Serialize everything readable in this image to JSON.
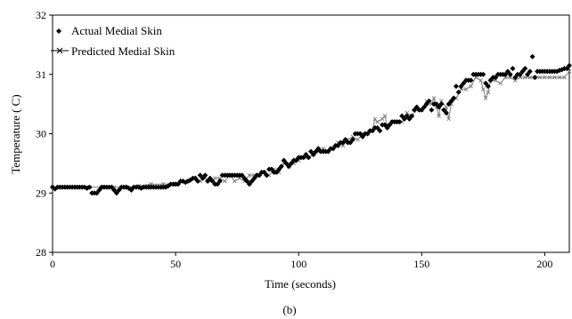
{
  "chart_data": {
    "type": "scatter",
    "caption": "(b)",
    "xlabel": "Time (seconds)",
    "ylabel": "Temperature ( C)",
    "xlim": [
      0,
      210
    ],
    "ylim": [
      28,
      32
    ],
    "x_ticks": [
      0,
      50,
      100,
      150,
      200
    ],
    "y_ticks": [
      28,
      29,
      30,
      31,
      32
    ],
    "grid": false,
    "legend_position": "top-left",
    "series": [
      {
        "name": "Actual Medial Skin",
        "marker": "diamond",
        "color": "#000000",
        "points": [
          [
            0,
            29.1
          ],
          [
            1,
            29.07
          ],
          [
            2,
            29.1
          ],
          [
            3,
            29.1
          ],
          [
            4,
            29.1
          ],
          [
            5,
            29.1
          ],
          [
            6,
            29.1
          ],
          [
            7,
            29.1
          ],
          [
            8,
            29.1
          ],
          [
            9,
            29.1
          ],
          [
            10,
            29.1
          ],
          [
            11,
            29.1
          ],
          [
            12,
            29.1
          ],
          [
            13,
            29.1
          ],
          [
            14,
            29.08
          ],
          [
            15,
            29.1
          ],
          [
            16,
            29.0
          ],
          [
            17,
            29.0
          ],
          [
            18,
            29.0
          ],
          [
            19,
            29.05
          ],
          [
            20,
            29.1
          ],
          [
            21,
            29.1
          ],
          [
            22,
            29.1
          ],
          [
            23,
            29.1
          ],
          [
            24,
            29.1
          ],
          [
            25,
            29.05
          ],
          [
            26,
            29.0
          ],
          [
            27,
            29.05
          ],
          [
            28,
            29.1
          ],
          [
            29,
            29.1
          ],
          [
            30,
            29.1
          ],
          [
            31,
            29.08
          ],
          [
            32,
            29.05
          ],
          [
            33,
            29.1
          ],
          [
            34,
            29.1
          ],
          [
            35,
            29.1
          ],
          [
            36,
            29.08
          ],
          [
            37,
            29.1
          ],
          [
            38,
            29.1
          ],
          [
            39,
            29.1
          ],
          [
            40,
            29.1
          ],
          [
            41,
            29.1
          ],
          [
            42,
            29.1
          ],
          [
            43,
            29.1
          ],
          [
            44,
            29.1
          ],
          [
            45,
            29.1
          ],
          [
            46,
            29.1
          ],
          [
            47,
            29.12
          ],
          [
            48,
            29.15
          ],
          [
            49,
            29.15
          ],
          [
            50,
            29.15
          ],
          [
            51,
            29.15
          ],
          [
            52,
            29.2
          ],
          [
            53,
            29.2
          ],
          [
            54,
            29.18
          ],
          [
            55,
            29.2
          ],
          [
            56,
            29.22
          ],
          [
            57,
            29.25
          ],
          [
            58,
            29.25
          ],
          [
            59,
            29.2
          ],
          [
            60,
            29.3
          ],
          [
            61,
            29.25
          ],
          [
            62,
            29.3
          ],
          [
            63,
            29.2
          ],
          [
            64,
            29.25
          ],
          [
            65,
            29.2
          ],
          [
            66,
            29.15
          ],
          [
            67,
            29.15
          ],
          [
            68,
            29.2
          ],
          [
            69,
            29.3
          ],
          [
            70,
            29.3
          ],
          [
            71,
            29.3
          ],
          [
            72,
            29.3
          ],
          [
            73,
            29.3
          ],
          [
            74,
            29.3
          ],
          [
            75,
            29.3
          ],
          [
            76,
            29.3
          ],
          [
            77,
            29.3
          ],
          [
            78,
            29.25
          ],
          [
            79,
            29.2
          ],
          [
            80,
            29.15
          ],
          [
            81,
            29.2
          ],
          [
            82,
            29.25
          ],
          [
            83,
            29.3
          ],
          [
            84,
            29.3
          ],
          [
            85,
            29.35
          ],
          [
            86,
            29.35
          ],
          [
            87,
            29.3
          ],
          [
            88,
            29.4
          ],
          [
            89,
            29.4
          ],
          [
            90,
            29.35
          ],
          [
            91,
            29.35
          ],
          [
            92,
            29.4
          ],
          [
            93,
            29.45
          ],
          [
            94,
            29.55
          ],
          [
            95,
            29.5
          ],
          [
            96,
            29.45
          ],
          [
            97,
            29.5
          ],
          [
            98,
            29.55
          ],
          [
            99,
            29.55
          ],
          [
            100,
            29.6
          ],
          [
            101,
            29.6
          ],
          [
            102,
            29.6
          ],
          [
            103,
            29.65
          ],
          [
            104,
            29.6
          ],
          [
            105,
            29.7
          ],
          [
            106,
            29.65
          ],
          [
            107,
            29.7
          ],
          [
            108,
            29.75
          ],
          [
            109,
            29.7
          ],
          [
            110,
            29.7
          ],
          [
            111,
            29.7
          ],
          [
            112,
            29.7
          ],
          [
            113,
            29.75
          ],
          [
            114,
            29.75
          ],
          [
            115,
            29.8
          ],
          [
            116,
            29.8
          ],
          [
            117,
            29.85
          ],
          [
            118,
            29.85
          ],
          [
            119,
            29.9
          ],
          [
            120,
            29.85
          ],
          [
            121,
            29.85
          ],
          [
            122,
            29.9
          ],
          [
            123,
            30.0
          ],
          [
            124,
            30.0
          ],
          [
            125,
            30.0
          ],
          [
            126,
            29.95
          ],
          [
            127,
            30.0
          ],
          [
            128,
            30.0
          ],
          [
            129,
            30.05
          ],
          [
            130,
            30.05
          ],
          [
            131,
            30.1
          ],
          [
            132,
            30.1
          ],
          [
            133,
            30.05
          ],
          [
            134,
            30.15
          ],
          [
            135,
            30.15
          ],
          [
            136,
            30.1
          ],
          [
            137,
            30.15
          ],
          [
            138,
            30.2
          ],
          [
            139,
            30.2
          ],
          [
            140,
            30.2
          ],
          [
            141,
            30.2
          ],
          [
            142,
            30.3
          ],
          [
            143,
            30.25
          ],
          [
            144,
            30.3
          ],
          [
            145,
            30.25
          ],
          [
            146,
            30.3
          ],
          [
            147,
            30.4
          ],
          [
            148,
            30.45
          ],
          [
            149,
            30.4
          ],
          [
            150,
            30.4
          ],
          [
            151,
            30.45
          ],
          [
            152,
            30.5
          ],
          [
            153,
            30.55
          ],
          [
            154,
            30.4
          ],
          [
            155,
            30.5
          ],
          [
            156,
            30.5
          ],
          [
            157,
            30.45
          ],
          [
            158,
            30.5
          ],
          [
            159,
            30.4
          ],
          [
            160,
            30.35
          ],
          [
            161,
            30.5
          ],
          [
            162,
            30.55
          ],
          [
            163,
            30.6
          ],
          [
            164,
            30.8
          ],
          [
            165,
            30.7
          ],
          [
            166,
            30.8
          ],
          [
            167,
            30.85
          ],
          [
            168,
            30.9
          ],
          [
            169,
            30.9
          ],
          [
            170,
            30.9
          ],
          [
            171,
            31.0
          ],
          [
            172,
            31.0
          ],
          [
            173,
            31.0
          ],
          [
            174,
            31.0
          ],
          [
            175,
            31.0
          ],
          [
            176,
            30.85
          ],
          [
            177,
            30.8
          ],
          [
            178,
            30.9
          ],
          [
            179,
            30.95
          ],
          [
            180,
            30.95
          ],
          [
            181,
            31.0
          ],
          [
            182,
            31.0
          ],
          [
            183,
            31.0
          ],
          [
            184,
            31.0
          ],
          [
            185,
            31.05
          ],
          [
            186,
            31.0
          ],
          [
            187,
            31.1
          ],
          [
            188,
            30.95
          ],
          [
            189,
            31.0
          ],
          [
            190,
            31.0
          ],
          [
            191,
            31.05
          ],
          [
            192,
            31.1
          ],
          [
            193,
            31.0
          ],
          [
            194,
            31.05
          ],
          [
            195,
            31.3
          ],
          [
            196,
            30.95
          ],
          [
            197,
            31.05
          ],
          [
            198,
            31.05
          ],
          [
            199,
            31.05
          ],
          [
            200,
            31.05
          ],
          [
            201,
            31.05
          ],
          [
            202,
            31.05
          ],
          [
            203,
            31.05
          ],
          [
            204,
            31.05
          ],
          [
            205,
            31.05
          ],
          [
            206,
            31.07
          ],
          [
            207,
            31.08
          ],
          [
            208,
            31.1
          ],
          [
            209,
            31.1
          ],
          [
            210,
            31.15
          ]
        ]
      },
      {
        "name": "Predicted Medial Skin",
        "marker": "x-line",
        "color": "#808080",
        "points": [
          [
            0,
            29.1
          ],
          [
            5,
            29.1
          ],
          [
            10,
            29.1
          ],
          [
            15,
            29.1
          ],
          [
            20,
            29.1
          ],
          [
            25,
            29.1
          ],
          [
            30,
            29.1
          ],
          [
            35,
            29.12
          ],
          [
            40,
            29.15
          ],
          [
            45,
            29.15
          ],
          [
            50,
            29.15
          ],
          [
            55,
            29.2
          ],
          [
            58,
            29.25
          ],
          [
            60,
            29.2
          ],
          [
            62,
            29.25
          ],
          [
            64,
            29.2
          ],
          [
            66,
            29.25
          ],
          [
            68,
            29.25
          ],
          [
            70,
            29.2
          ],
          [
            72,
            29.3
          ],
          [
            74,
            29.2
          ],
          [
            76,
            29.25
          ],
          [
            78,
            29.2
          ],
          [
            80,
            29.3
          ],
          [
            82,
            29.3
          ],
          [
            84,
            29.3
          ],
          [
            86,
            29.35
          ],
          [
            88,
            29.3
          ],
          [
            90,
            29.4
          ],
          [
            92,
            29.35
          ],
          [
            94,
            29.5
          ],
          [
            96,
            29.45
          ],
          [
            98,
            29.5
          ],
          [
            100,
            29.55
          ],
          [
            102,
            29.6
          ],
          [
            104,
            29.6
          ],
          [
            106,
            29.65
          ],
          [
            108,
            29.7
          ],
          [
            110,
            29.75
          ],
          [
            112,
            29.7
          ],
          [
            114,
            29.75
          ],
          [
            116,
            29.85
          ],
          [
            118,
            29.8
          ],
          [
            120,
            29.9
          ],
          [
            122,
            29.95
          ],
          [
            124,
            29.9
          ],
          [
            126,
            30.0
          ],
          [
            128,
            30.0
          ],
          [
            130,
            30.05
          ],
          [
            131,
            30.25
          ],
          [
            132,
            30.2
          ],
          [
            134,
            30.25
          ],
          [
            135,
            30.3
          ],
          [
            136,
            30.15
          ],
          [
            138,
            30.2
          ],
          [
            140,
            30.2
          ],
          [
            142,
            30.2
          ],
          [
            144,
            30.35
          ],
          [
            146,
            30.3
          ],
          [
            148,
            30.4
          ],
          [
            150,
            30.4
          ],
          [
            152,
            30.55
          ],
          [
            154,
            30.5
          ],
          [
            155,
            30.6
          ],
          [
            156,
            30.45
          ],
          [
            157,
            30.3
          ],
          [
            158,
            30.55
          ],
          [
            160,
            30.45
          ],
          [
            161,
            30.25
          ],
          [
            162,
            30.5
          ],
          [
            164,
            30.6
          ],
          [
            166,
            30.75
          ],
          [
            168,
            30.75
          ],
          [
            170,
            30.8
          ],
          [
            172,
            30.95
          ],
          [
            174,
            30.9
          ],
          [
            175,
            30.75
          ],
          [
            176,
            30.6
          ],
          [
            177,
            30.7
          ],
          [
            178,
            30.9
          ],
          [
            180,
            30.9
          ],
          [
            182,
            30.85
          ],
          [
            184,
            30.95
          ],
          [
            186,
            30.95
          ],
          [
            188,
            30.9
          ],
          [
            190,
            30.95
          ],
          [
            192,
            30.95
          ],
          [
            194,
            30.95
          ],
          [
            196,
            30.95
          ],
          [
            198,
            30.95
          ],
          [
            200,
            30.95
          ],
          [
            202,
            30.95
          ],
          [
            204,
            30.95
          ],
          [
            206,
            30.95
          ],
          [
            208,
            30.95
          ],
          [
            210,
            31.05
          ]
        ]
      }
    ]
  }
}
